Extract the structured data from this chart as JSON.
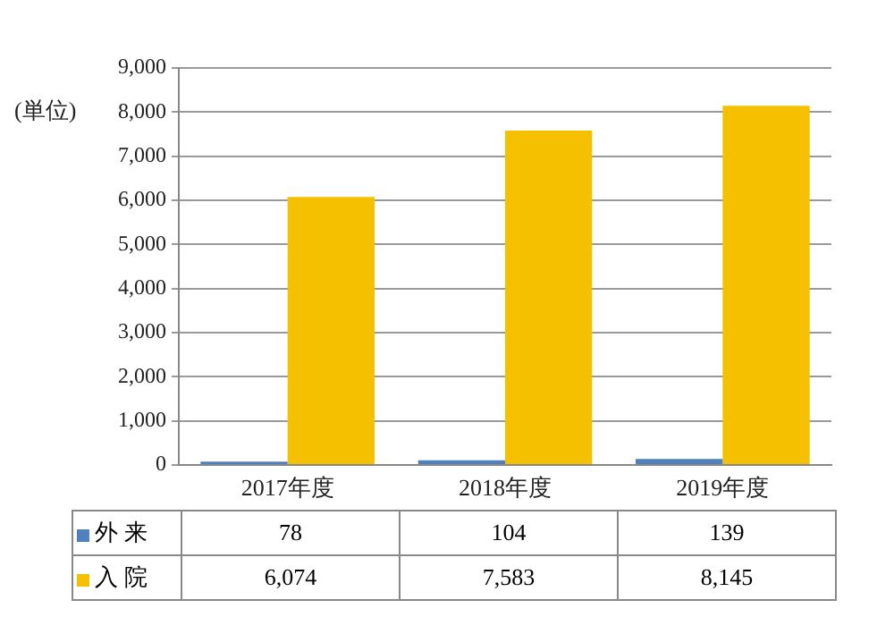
{
  "chart_data": {
    "type": "bar",
    "ylabel": "(単位)",
    "categories": [
      "2017年度",
      "2018年度",
      "2019年度"
    ],
    "series": [
      {
        "name": "外 来",
        "color": "#4f81bd",
        "values": [
          78,
          104,
          139
        ],
        "value_labels": [
          "78",
          "104",
          "139"
        ]
      },
      {
        "name": "入 院",
        "color": "#f5c000",
        "values": [
          6074,
          7583,
          8145
        ],
        "value_labels": [
          "6,074",
          "7,583",
          "8,145"
        ]
      }
    ],
    "ylim": [
      0,
      9000
    ],
    "yticks": [
      0,
      {
        "value": 1000,
        "label": "1,000"
      },
      {
        "value": 2000,
        "label": "2,000"
      },
      {
        "value": 3000,
        "label": "3,000"
      },
      {
        "value": 4000,
        "label": "4,000"
      },
      {
        "value": 5000,
        "label": "5,000"
      },
      {
        "value": 6000,
        "label": "6,000"
      },
      {
        "value": 7000,
        "label": "7,000"
      },
      {
        "value": 8000,
        "label": "8,000"
      },
      {
        "value": 9000,
        "label": "9,000"
      }
    ],
    "grid": "y",
    "legend": "bottom"
  }
}
